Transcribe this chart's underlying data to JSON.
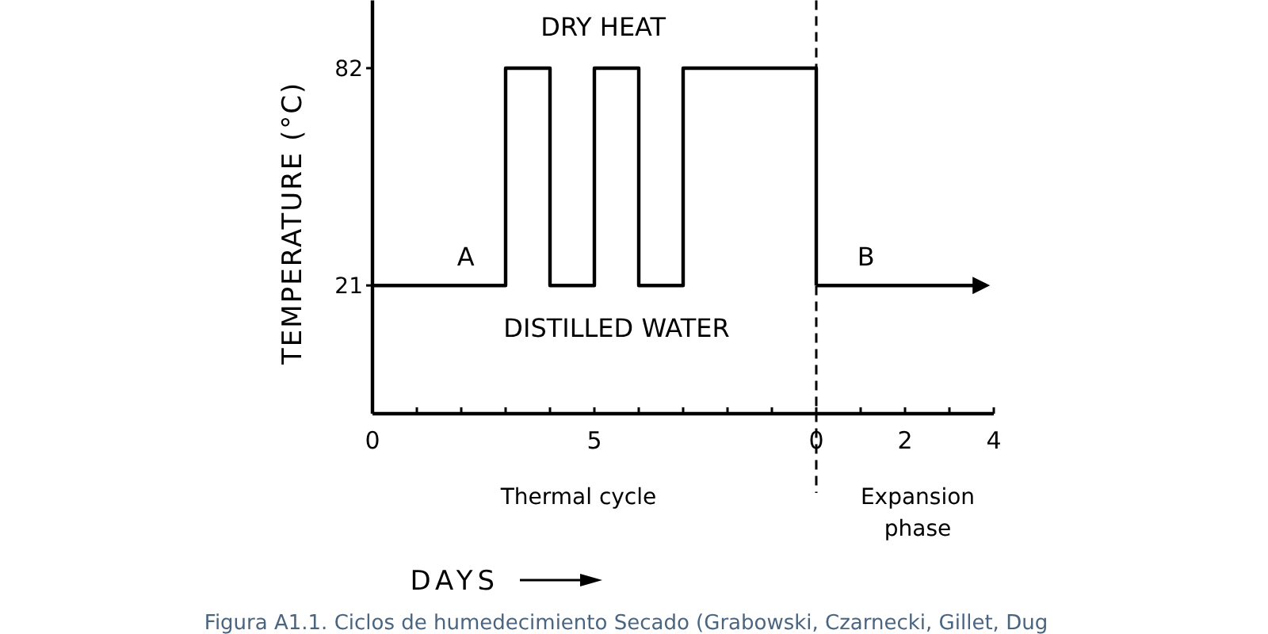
{
  "chart_data": [
    {
      "type": "step",
      "xlabel": "Thermal cycle",
      "ylabel": "TEMPERATURE (°C)",
      "x": [
        0,
        3,
        4,
        5,
        6,
        7,
        10
      ],
      "series": [
        {
          "color": "#000000",
          "values": [
            21,
            82,
            21,
            82,
            21,
            82,
            21
          ]
        }
      ],
      "xlim": [
        0,
        10
      ],
      "xticks": [
        0,
        {
          "value": 1,
          "label": null
        },
        {
          "value": 2,
          "label": null
        },
        {
          "value": 3,
          "label": null
        },
        {
          "value": 4,
          "label": null
        },
        5,
        {
          "value": 6,
          "label": null
        },
        {
          "value": 7,
          "label": null
        },
        {
          "value": 8,
          "label": null
        },
        {
          "value": 9,
          "label": null
        }
      ],
      "ylim": [
        -15,
        101
      ],
      "yticks": [
        21,
        82
      ],
      "grid": false,
      "marker": "none",
      "annotations": [
        "DRY HEAT",
        "DISTILLED WATER",
        "A",
        "DAYS",
        "Figura A1.1. Ciclos de humedecimiento Secado (Grabowski, Czarnecki, Gillet, Dug"
      ]
    },
    {
      "type": "line",
      "xlabel": "Expansion phase",
      "x": [
        0,
        3.6
      ],
      "series": [
        {
          "color": "#000000",
          "values": [
            21,
            21
          ]
        }
      ],
      "xlim": [
        0,
        4
      ],
      "xticks": [
        0,
        {
          "value": 1,
          "label": null
        },
        2,
        {
          "value": 3,
          "label": null
        },
        4
      ],
      "ylim": [
        -15,
        101
      ],
      "tick_labels": "x",
      "ref_lines": [
        {
          "axis": "x",
          "value": 0,
          "line_style": "dashed",
          "color": "#000000"
        }
      ],
      "marker": "none",
      "annotations": [
        "B"
      ]
    }
  ]
}
